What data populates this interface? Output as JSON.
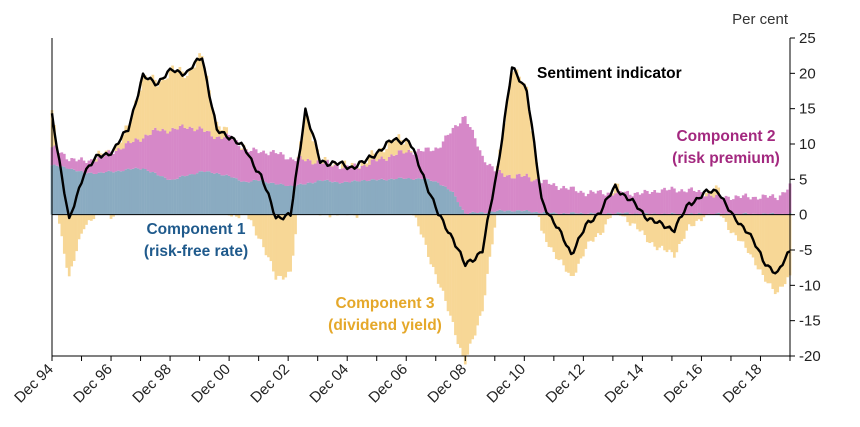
{
  "chart_data": {
    "type": "area",
    "title": "",
    "unit_label": "Per cent",
    "ylim": [
      -20,
      25
    ],
    "yticks": [
      25,
      20,
      15,
      10,
      5,
      0,
      -5,
      -10,
      -15,
      -20
    ],
    "xlim": [
      1994.917,
      2019.917
    ],
    "xticks": [
      {
        "label": "Dec 94",
        "x": 1994.917
      },
      {
        "label": "Dec 96",
        "x": 1996.917
      },
      {
        "label": "Dec 98",
        "x": 1998.917
      },
      {
        "label": "Dec 00",
        "x": 2000.917
      },
      {
        "label": "Dec 02",
        "x": 2002.917
      },
      {
        "label": "Dec 04",
        "x": 2004.917
      },
      {
        "label": "Dec 06",
        "x": 2006.917
      },
      {
        "label": "Dec 08",
        "x": 2008.917
      },
      {
        "label": "Dec 10",
        "x": 2010.917
      },
      {
        "label": "Dec 12",
        "x": 2012.917
      },
      {
        "label": "Dec 14",
        "x": 2014.917
      },
      {
        "label": "Dec 16",
        "x": 2016.917
      },
      {
        "label": "Dec 18",
        "x": 2018.917
      }
    ],
    "colors": {
      "component1": "#8aabc1",
      "component2": "#d688c8",
      "component3": "#f7d796",
      "indicator": "#000000",
      "label1": "#1f5a8c",
      "label2": "#a3287f",
      "label3": "#e5a82a"
    },
    "annotations": {
      "indicator": "Sentiment indicator",
      "c1_line1": "Component 1",
      "c1_line2": "(risk-free rate)",
      "c2_line1": "Component 2",
      "c2_line2": "(risk premium)",
      "c3_line1": "Component 3",
      "c3_line2": "(dividend yield)"
    },
    "series": [
      {
        "name": "Component 1 (risk-free rate)",
        "type": "area",
        "x": [
          1994.92,
          1995.5,
          1996.0,
          1996.5,
          1997.0,
          1997.5,
          1998.0,
          1998.5,
          1999.0,
          1999.5,
          2000.0,
          2000.5,
          2001.0,
          2001.5,
          2002.0,
          2002.5,
          2003.0,
          2003.5,
          2004.0,
          2004.5,
          2005.0,
          2005.5,
          2006.0,
          2006.5,
          2007.0,
          2007.5,
          2008.0,
          2008.5,
          2008.9,
          2009.5,
          2010.0,
          2010.5,
          2011.0,
          2011.5,
          2012.0,
          2012.5,
          2013.0,
          2013.5,
          2014.0,
          2014.5,
          2015.0,
          2015.5,
          2016.0,
          2016.5,
          2017.0,
          2017.5,
          2018.0,
          2018.5,
          2019.0,
          2019.5,
          2019.92
        ],
        "values": [
          7.0,
          6.6,
          5.9,
          5.9,
          6.1,
          6.4,
          6.6,
          5.6,
          4.9,
          5.6,
          6.1,
          5.9,
          5.3,
          4.6,
          4.9,
          4.3,
          4.1,
          4.3,
          4.9,
          4.6,
          4.6,
          4.9,
          4.9,
          5.1,
          5.1,
          5.1,
          4.6,
          3.1,
          0.2,
          0.3,
          0.5,
          0.6,
          0.5,
          0.3,
          0.2,
          0.2,
          0.2,
          0.2,
          0.2,
          0.2,
          0.1,
          0.1,
          0.1,
          0.1,
          0.1,
          0.1,
          0.1,
          0.1,
          0.1,
          0.1,
          0.1
        ]
      },
      {
        "name": "Component 2 (risk premium)",
        "type": "area",
        "x": [
          1994.92,
          1995.5,
          1996.0,
          1996.5,
          1997.0,
          1997.5,
          1998.0,
          1998.5,
          1999.0,
          1999.5,
          2000.0,
          2000.5,
          2001.0,
          2001.5,
          2002.0,
          2002.5,
          2003.0,
          2003.5,
          2004.0,
          2004.5,
          2005.0,
          2005.5,
          2006.0,
          2006.5,
          2007.0,
          2007.5,
          2008.0,
          2008.5,
          2008.9,
          2009.5,
          2010.0,
          2010.5,
          2011.0,
          2011.5,
          2012.0,
          2012.5,
          2013.0,
          2013.5,
          2014.0,
          2014.5,
          2015.0,
          2015.5,
          2016.0,
          2016.5,
          2017.0,
          2017.5,
          2018.0,
          2018.5,
          2019.0,
          2019.5,
          2019.92
        ],
        "values": [
          2.5,
          1.4,
          1.6,
          2.1,
          2.9,
          3.6,
          4.4,
          6.4,
          7.1,
          6.9,
          5.9,
          5.1,
          5.7,
          4.4,
          4.1,
          4.4,
          3.9,
          3.4,
          2.6,
          2.4,
          2.1,
          2.1,
          2.9,
          3.4,
          3.9,
          3.9,
          4.9,
          8.9,
          13.9,
          7.9,
          5.4,
          4.9,
          4.9,
          4.4,
          3.9,
          3.4,
          2.9,
          2.9,
          2.9,
          2.9,
          2.9,
          3.4,
          3.4,
          3.4,
          2.9,
          2.4,
          2.4,
          2.4,
          2.4,
          2.4,
          3.9
        ]
      },
      {
        "name": "Component 3 (dividend yield)",
        "type": "area",
        "x": [
          1994.92,
          1995.5,
          1996.0,
          1996.5,
          1997.0,
          1997.5,
          1998.0,
          1998.5,
          1999.0,
          1999.5,
          2000.0,
          2000.5,
          2001.0,
          2001.5,
          2002.0,
          2002.5,
          2003.0,
          2003.5,
          2004.0,
          2004.5,
          2005.0,
          2005.5,
          2006.0,
          2006.5,
          2007.0,
          2007.5,
          2008.0,
          2008.5,
          2008.9,
          2009.5,
          2010.0,
          2010.5,
          2011.0,
          2011.5,
          2012.0,
          2012.5,
          2013.0,
          2013.5,
          2014.0,
          2014.5,
          2015.0,
          2015.5,
          2016.0,
          2016.5,
          2017.0,
          2017.5,
          2018.0,
          2018.5,
          2019.0,
          2019.5,
          2019.92
        ],
        "values": [
          4.6,
          -9.0,
          -1.5,
          0.3,
          0.0,
          2.3,
          8.5,
          6.7,
          8.5,
          7.5,
          10.5,
          1.8,
          0.0,
          0.0,
          -3.6,
          -9.0,
          -8.2,
          7.2,
          0.0,
          0.3,
          0.0,
          0.4,
          1.3,
          2.1,
          1.5,
          -3.5,
          -9.5,
          -15.3,
          -21.3,
          -13.3,
          0.4,
          15.2,
          12.4,
          -2.7,
          -5.7,
          -9.1,
          -4.8,
          -2.5,
          0.8,
          -1.0,
          -3.1,
          -4.9,
          -5.5,
          -2.0,
          0.0,
          0.9,
          -3.0,
          -4.8,
          -9.0,
          -10.9,
          -9.0
        ]
      },
      {
        "name": "Sentiment indicator",
        "type": "line",
        "x": [
          1994.92,
          1995.5,
          1996.0,
          1996.5,
          1997.0,
          1997.5,
          1998.0,
          1998.5,
          1999.0,
          1999.5,
          2000.0,
          2000.5,
          2001.0,
          2001.5,
          2002.0,
          2002.5,
          2003.0,
          2003.5,
          2004.0,
          2004.5,
          2005.0,
          2005.5,
          2006.0,
          2006.5,
          2007.0,
          2007.5,
          2008.0,
          2008.5,
          2008.9,
          2009.5,
          2010.0,
          2010.5,
          2011.0,
          2011.5,
          2012.0,
          2012.5,
          2013.0,
          2013.5,
          2014.0,
          2014.5,
          2015.0,
          2015.5,
          2016.0,
          2016.5,
          2017.0,
          2017.5,
          2018.0,
          2018.5,
          2019.0,
          2019.5,
          2019.92
        ],
        "values": [
          14.1,
          -1.0,
          6.0,
          8.3,
          9.0,
          12.3,
          19.5,
          18.7,
          20.5,
          20.0,
          22.5,
          11.8,
          11.0,
          9.0,
          5.4,
          -0.3,
          -0.2,
          14.9,
          7.5,
          7.3,
          6.7,
          7.4,
          9.1,
          10.6,
          10.5,
          5.5,
          0.0,
          -3.3,
          -7.2,
          -5.1,
          6.3,
          20.7,
          17.8,
          2.0,
          -1.6,
          -5.5,
          -1.7,
          0.6,
          3.9,
          2.1,
          -0.1,
          -1.4,
          -2.0,
          1.5,
          3.0,
          3.4,
          -0.5,
          -2.3,
          -6.5,
          -8.4,
          -5.0
        ]
      }
    ]
  }
}
